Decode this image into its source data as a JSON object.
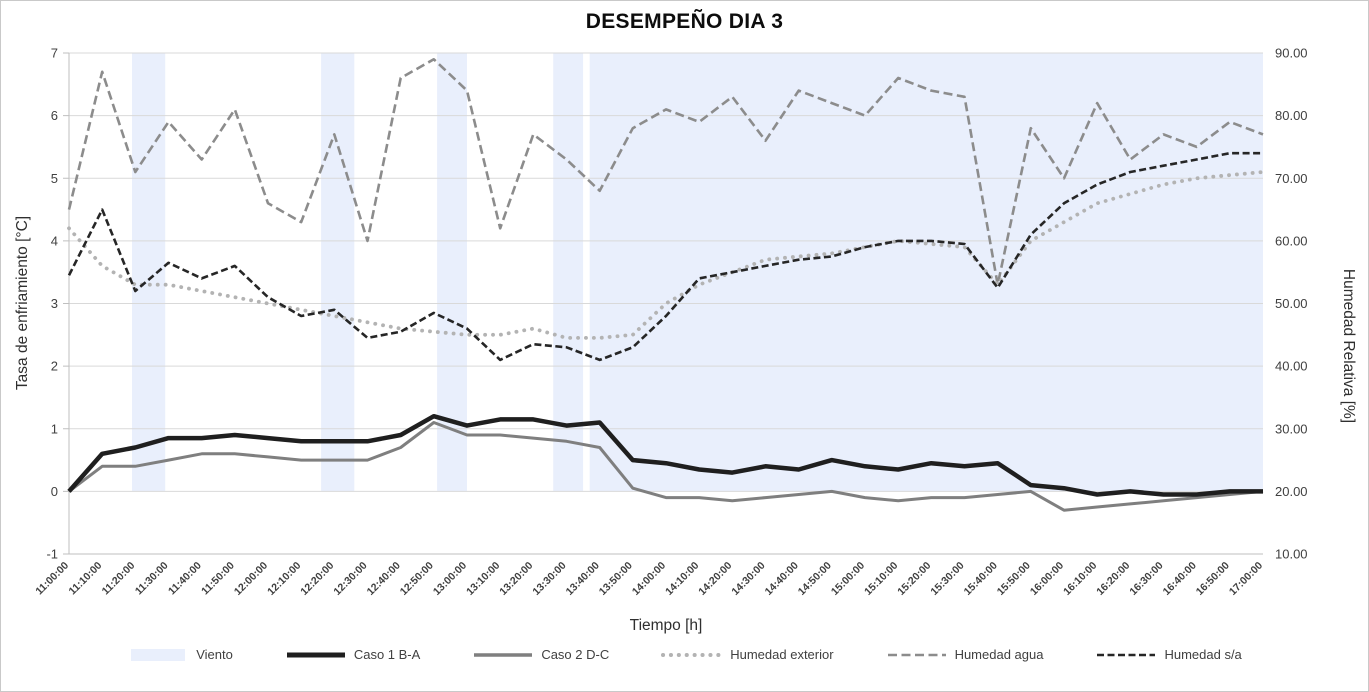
{
  "title": "DESEMPEÑO DIA 3",
  "axes": {
    "left": {
      "title": "Tasa de enfriamiento [°C]",
      "ticks": [
        "7",
        "6",
        "5",
        "4",
        "3",
        "2",
        "1",
        "0",
        "-1"
      ]
    },
    "right": {
      "title": "Humedad Relativa [%]",
      "ticks": [
        "90.00",
        "80.00",
        "70.00",
        "60.00",
        "50.00",
        "40.00",
        "30.00",
        "20.00",
        "10.00"
      ]
    },
    "x": {
      "title": "Tiempo [h]"
    }
  },
  "legend": [
    {
      "label": "Viento",
      "style": "band",
      "color": "#e9effc"
    },
    {
      "label": "Caso 1 B-A",
      "style": "solid",
      "color": "#1f1f1f",
      "width": 5
    },
    {
      "label": "Caso 2 D-C",
      "style": "solid",
      "color": "#7f7f7f",
      "width": 3.5
    },
    {
      "label": "Humedad exterior",
      "style": "dotted",
      "color": "#b3b3b3",
      "width": 4
    },
    {
      "label": "Humedad agua",
      "style": "dashed",
      "color": "#8c8c8c",
      "width": 2.6
    },
    {
      "label": "Humedad s/a",
      "style": "dashed-dark",
      "color": "#262626",
      "width": 2.6
    }
  ],
  "chart_data": {
    "type": "line",
    "title": "DESEMPEÑO DIA 3",
    "xlabel": "Tiempo [h]",
    "ylabel_left": "Tasa de enfriamiento [°C]",
    "ylabel_right": "Humedad Relativa [%]",
    "ylim_left": [
      -1,
      7
    ],
    "ylim_right": [
      10,
      90
    ],
    "grid": "horizontal",
    "legend_position": "bottom",
    "categories": [
      "11:00:00",
      "11:10:00",
      "11:20:00",
      "11:30:00",
      "11:40:00",
      "11:50:00",
      "12:00:00",
      "12:10:00",
      "12:20:00",
      "12:30:00",
      "12:40:00",
      "12:50:00",
      "13:00:00",
      "13:10:00",
      "13:20:00",
      "13:30:00",
      "13:40:00",
      "13:50:00",
      "14:00:00",
      "14:10:00",
      "14:20:00",
      "14:30:00",
      "14:40:00",
      "14:50:00",
      "15:00:00",
      "15:10:00",
      "15:20:00",
      "15:30:00",
      "15:40:00",
      "15:50:00",
      "16:00:00",
      "16:10:00",
      "16:20:00",
      "16:30:00",
      "16:40:00",
      "16:50:00",
      "17:00:00"
    ],
    "wind_bands": {
      "name": "Viento",
      "color": "#e9effc",
      "ranges": [
        [
          1.9,
          2.9
        ],
        [
          7.6,
          8.6
        ],
        [
          11.1,
          12.0
        ],
        [
          14.6,
          15.5
        ],
        [
          15.7,
          36
        ]
      ]
    },
    "series": [
      {
        "name": "Humedad agua",
        "axis": "right",
        "style": "dashed",
        "color": "#8c8c8c",
        "width": 2.6,
        "values": [
          65,
          87,
          71,
          79,
          73,
          81,
          66,
          63,
          77,
          60,
          86,
          89,
          84,
          62,
          77,
          73,
          68,
          78,
          81,
          79,
          83,
          76,
          84,
          82,
          80,
          86,
          84,
          83,
          53,
          78,
          70,
          82,
          73,
          77,
          75,
          79,
          77
        ]
      },
      {
        "name": "Humedad exterior",
        "axis": "right",
        "style": "dotted",
        "color": "#b3b3b3",
        "width": 3.8,
        "values": [
          62,
          56,
          53,
          53,
          52,
          51,
          50,
          49,
          48,
          47,
          46,
          45.5,
          45,
          45,
          46,
          44.5,
          44.5,
          45,
          50,
          53,
          55,
          57,
          57.5,
          58,
          59,
          60,
          59.5,
          59,
          53,
          60,
          63,
          66,
          67.5,
          69,
          70,
          70.5,
          71
        ]
      },
      {
        "name": "Humedad s/a",
        "axis": "right",
        "style": "dashed-dark",
        "color": "#262626",
        "width": 2.6,
        "values": [
          54.5,
          65,
          52,
          56.5,
          54,
          56,
          51,
          48,
          49,
          44.5,
          45.5,
          48.5,
          46,
          41,
          43.5,
          43,
          41,
          43,
          48,
          54,
          55,
          56,
          57,
          57.5,
          59,
          60,
          60,
          59.5,
          52.5,
          61,
          66,
          69,
          71,
          72,
          73,
          74,
          74
        ]
      },
      {
        "name": "Caso 2 D-C",
        "axis": "left",
        "style": "solid",
        "color": "#7f7f7f",
        "width": 3,
        "values": [
          0,
          0.4,
          0.4,
          0.5,
          0.6,
          0.6,
          0.55,
          0.5,
          0.5,
          0.5,
          0.7,
          1.1,
          0.9,
          0.9,
          0.85,
          0.8,
          0.7,
          0.05,
          -0.1,
          -0.1,
          -0.15,
          -0.1,
          -0.05,
          0.0,
          -0.1,
          -0.15,
          -0.1,
          -0.1,
          -0.05,
          0.0,
          -0.3,
          -0.25,
          -0.2,
          -0.15,
          -0.1,
          -0.05,
          0.0
        ]
      },
      {
        "name": "Caso 1 B-A",
        "axis": "left",
        "style": "solid",
        "color": "#1f1f1f",
        "width": 4.5,
        "values": [
          0,
          0.6,
          0.7,
          0.85,
          0.85,
          0.9,
          0.85,
          0.8,
          0.8,
          0.8,
          0.9,
          1.2,
          1.05,
          1.15,
          1.15,
          1.05,
          1.1,
          0.5,
          0.45,
          0.35,
          0.3,
          0.4,
          0.35,
          0.5,
          0.4,
          0.35,
          0.45,
          0.4,
          0.45,
          0.1,
          0.05,
          -0.05,
          0.0,
          -0.05,
          -0.05,
          0.0,
          0.0
        ]
      }
    ]
  }
}
